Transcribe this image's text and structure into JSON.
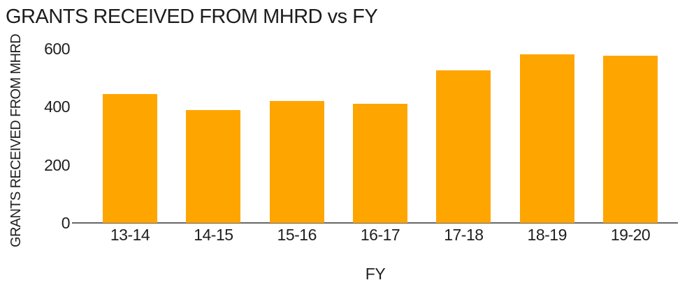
{
  "chart_data": {
    "type": "bar",
    "title": "GRANTS RECEIVED FROM MHRD vs FY",
    "xlabel": "FY",
    "ylabel": "GRANTS RECEIVED FROM MHRD",
    "categories": [
      "13-14",
      "14-15",
      "15-16",
      "16-17",
      "17-18",
      "18-19",
      "19-20"
    ],
    "values": [
      445,
      390,
      420,
      410,
      525,
      580,
      575
    ],
    "yticks": [
      0,
      200,
      400,
      600
    ],
    "ylim": [
      0,
      600
    ],
    "grid": false,
    "legend": "none",
    "bar_color": "#FFA500",
    "axis_line_color": "#666666",
    "text_color": "#1f1f1f",
    "background_color": "#ffffff"
  }
}
